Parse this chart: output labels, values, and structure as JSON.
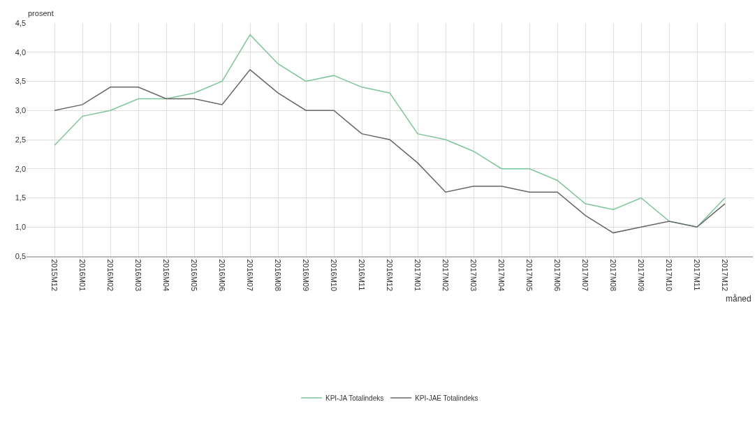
{
  "chart_data": {
    "type": "line",
    "ylabel": "prosent",
    "xlabel": "måned",
    "categories": [
      "2015M12",
      "2016M01",
      "2016M02",
      "2016M03",
      "2016M04",
      "2016M05",
      "2016M06",
      "2016M07",
      "2016M08",
      "2016M09",
      "2016M10",
      "2016M11",
      "2016M12",
      "2017M01",
      "2017M02",
      "2017M03",
      "2017M04",
      "2017M05",
      "2017M06",
      "2017M07",
      "2017M08",
      "2017M09",
      "2017M10",
      "2017M11",
      "2017M12"
    ],
    "series": [
      {
        "name": "KPI-JA Totalindeks",
        "color": "#7cc597",
        "values": [
          2.4,
          2.9,
          3.0,
          3.2,
          3.2,
          3.3,
          3.5,
          4.3,
          3.8,
          3.5,
          3.6,
          3.4,
          3.3,
          2.6,
          2.5,
          2.3,
          2.0,
          2.0,
          1.8,
          1.4,
          1.3,
          1.5,
          1.1,
          1.0,
          1.5
        ]
      },
      {
        "name": "KPI-JAE Totalindeks",
        "color": "#666666",
        "values": [
          3.0,
          3.1,
          3.4,
          3.4,
          3.2,
          3.2,
          3.1,
          3.7,
          3.3,
          3.0,
          3.0,
          2.6,
          2.5,
          2.1,
          1.6,
          1.7,
          1.7,
          1.6,
          1.6,
          1.2,
          0.9,
          1.0,
          1.1,
          1.0,
          1.4
        ]
      }
    ],
    "ylim": [
      0.5,
      4.5
    ],
    "yticks": [
      {
        "value": 0.5,
        "label": "0,5"
      },
      {
        "value": 1,
        "label": "1,0"
      },
      {
        "value": 1.5,
        "label": "1,5"
      },
      {
        "value": 2,
        "label": "2,0"
      },
      {
        "value": 2.5,
        "label": "2,5"
      },
      {
        "value": 3,
        "label": "3,0"
      },
      {
        "value": 3.5,
        "label": "3,5"
      },
      {
        "value": 4,
        "label": "4,0"
      },
      {
        "value": 4.5,
        "label": "4,5"
      }
    ],
    "grid": true,
    "legend": "bottom",
    "marker": "none",
    "line_style": "solid"
  }
}
